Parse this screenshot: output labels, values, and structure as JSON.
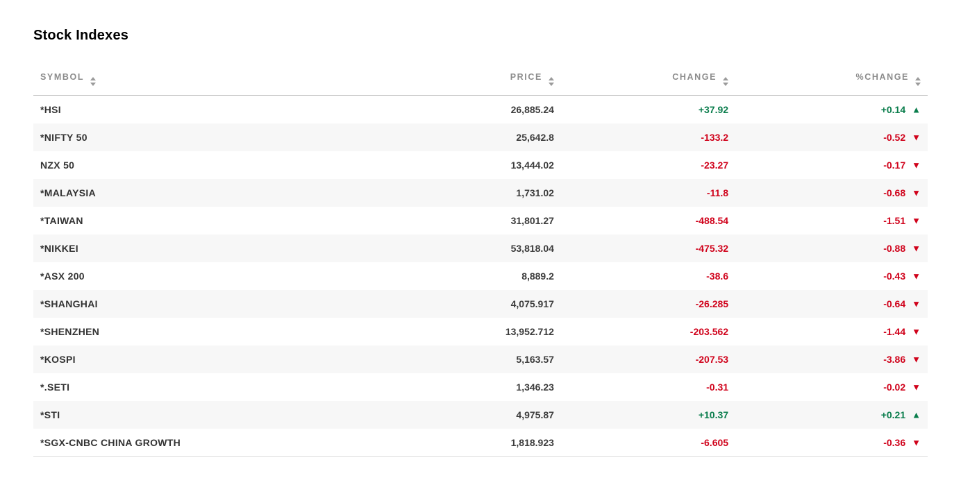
{
  "page": {
    "title": "Stock Indexes"
  },
  "colors": {
    "positive": "#0a7d4c",
    "negative": "#d0021b",
    "header_text": "#8c8c8c",
    "row_stripe": "#f7f7f7"
  },
  "icons": {
    "up_arrow": "▲",
    "down_arrow": "▼"
  },
  "table": {
    "columns": [
      "SYMBOL",
      "PRICE",
      "CHANGE",
      "%CHANGE"
    ],
    "rows": [
      {
        "symbol": "*HSI",
        "price": "26,885.24",
        "change": "+37.92",
        "pct_change": "+0.14",
        "direction": "up"
      },
      {
        "symbol": "*NIFTY 50",
        "price": "25,642.8",
        "change": "-133.2",
        "pct_change": "-0.52",
        "direction": "down"
      },
      {
        "symbol": "NZX 50",
        "price": "13,444.02",
        "change": "-23.27",
        "pct_change": "-0.17",
        "direction": "down"
      },
      {
        "symbol": "*MALAYSIA",
        "price": "1,731.02",
        "change": "-11.8",
        "pct_change": "-0.68",
        "direction": "down"
      },
      {
        "symbol": "*TAIWAN",
        "price": "31,801.27",
        "change": "-488.54",
        "pct_change": "-1.51",
        "direction": "down"
      },
      {
        "symbol": "*NIKKEI",
        "price": "53,818.04",
        "change": "-475.32",
        "pct_change": "-0.88",
        "direction": "down"
      },
      {
        "symbol": "*ASX 200",
        "price": "8,889.2",
        "change": "-38.6",
        "pct_change": "-0.43",
        "direction": "down"
      },
      {
        "symbol": "*SHANGHAI",
        "price": "4,075.917",
        "change": "-26.285",
        "pct_change": "-0.64",
        "direction": "down"
      },
      {
        "symbol": "*SHENZHEN",
        "price": "13,952.712",
        "change": "-203.562",
        "pct_change": "-1.44",
        "direction": "down"
      },
      {
        "symbol": "*KOSPI",
        "price": "5,163.57",
        "change": "-207.53",
        "pct_change": "-3.86",
        "direction": "down"
      },
      {
        "symbol": "*.SETI",
        "price": "1,346.23",
        "change": "-0.31",
        "pct_change": "-0.02",
        "direction": "down"
      },
      {
        "symbol": "*STI",
        "price": "4,975.87",
        "change": "+10.37",
        "pct_change": "+0.21",
        "direction": "up"
      },
      {
        "symbol": "*SGX-CNBC CHINA GROWTH",
        "price": "1,818.923",
        "change": "-6.605",
        "pct_change": "-0.36",
        "direction": "down"
      }
    ]
  }
}
